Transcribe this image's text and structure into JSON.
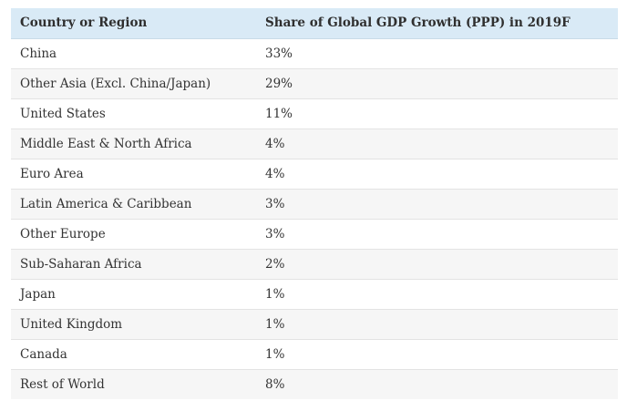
{
  "chart_data": {
    "type": "table",
    "columns": [
      "Country or Region",
      "Share of Global GDP Growth (PPP) in 2019F"
    ],
    "rows": [
      [
        "China",
        "33%"
      ],
      [
        "Other Asia (Excl. China/Japan)",
        "29%"
      ],
      [
        "United States",
        "11%"
      ],
      [
        "Middle East & North Africa",
        "4%"
      ],
      [
        "Euro Area",
        "4%"
      ],
      [
        "Latin America & Caribbean",
        "3%"
      ],
      [
        "Other Europe",
        "3%"
      ],
      [
        "Sub-Saharan Africa",
        "2%"
      ],
      [
        "Japan",
        "1%"
      ],
      [
        "United Kingdom",
        "1%"
      ],
      [
        "Canada",
        "1%"
      ],
      [
        "Rest of World",
        "8%"
      ]
    ],
    "values": [
      33,
      29,
      11,
      4,
      4,
      3,
      3,
      2,
      1,
      1,
      1,
      8
    ],
    "colors": {
      "header_bg": "#d9eaf6",
      "row_alt_bg": "#f6f6f6",
      "row_bg": "#ffffff"
    }
  }
}
